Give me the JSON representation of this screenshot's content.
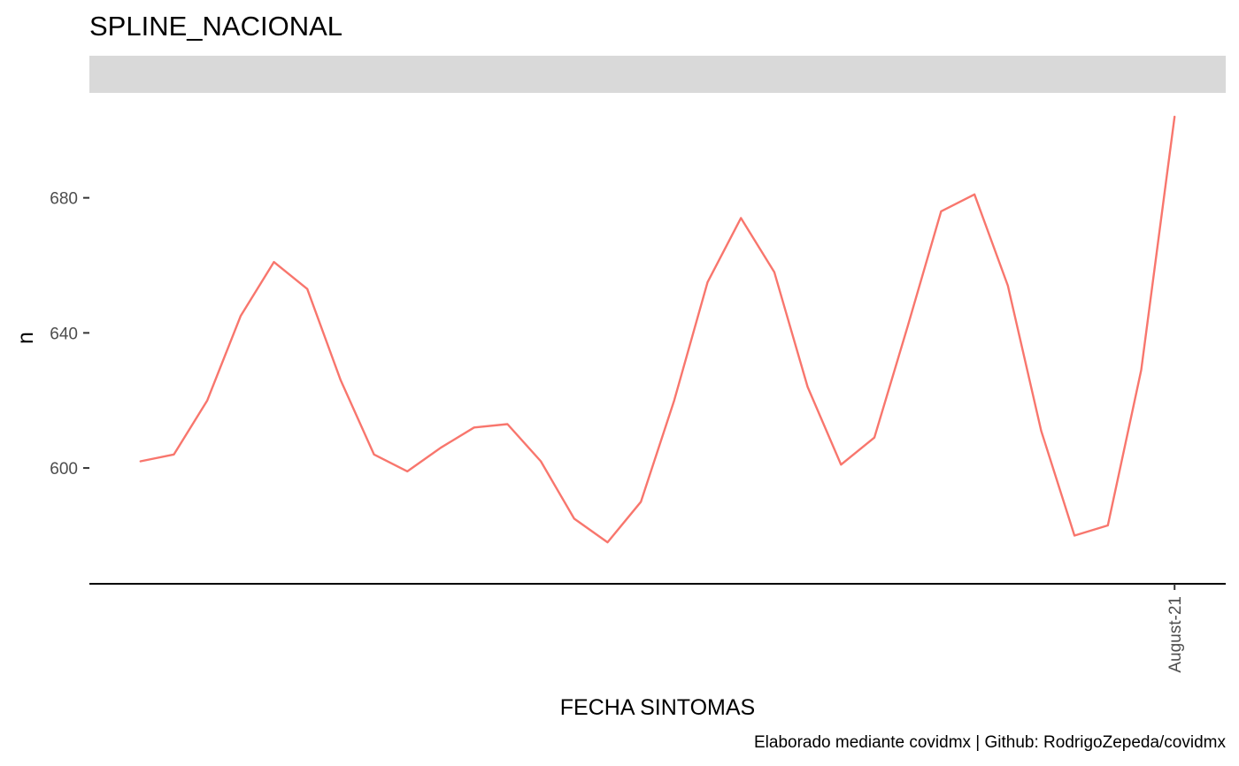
{
  "chart_data": {
    "type": "line",
    "title": "SPLINE_NACIONAL",
    "strip_label": "",
    "xlabel": "FECHA SINTOMAS",
    "ylabel": "n",
    "caption": "Elaborado mediante covidmx | Github: RodrigoZepeda/covidmx",
    "x_tick_labels": [
      {
        "label": "August-21",
        "index": 31
      }
    ],
    "y_ticks": [
      600,
      640,
      680
    ],
    "ylim": [
      572,
      704
    ],
    "grid": false,
    "legend": "none",
    "series": [
      {
        "color": "#F8766D",
        "x": [
          0,
          1,
          2,
          3,
          4,
          5,
          6,
          7,
          8,
          9,
          10,
          11,
          12,
          13,
          14,
          15,
          16,
          17,
          18,
          19,
          20,
          21,
          22,
          23,
          24,
          25,
          26,
          27,
          28,
          29,
          30,
          31
        ],
        "values": [
          602,
          604,
          620,
          645,
          661,
          653,
          626,
          604,
          599,
          606,
          612,
          613,
          602,
          585,
          578,
          590,
          620,
          655,
          674,
          658,
          624,
          601,
          609,
          642,
          676,
          681,
          654,
          611,
          580,
          583,
          629,
          704
        ]
      }
    ]
  }
}
